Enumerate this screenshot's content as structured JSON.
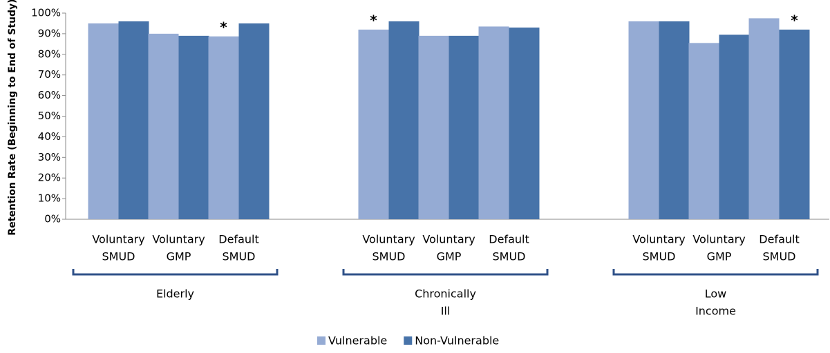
{
  "chart_data": {
    "type": "bar",
    "y_label": "Retention Rate (Beginning to End of Study)",
    "categories": [
      [
        "Voluntary",
        "SMUD"
      ],
      [
        "Voluntary",
        "GMP"
      ],
      [
        "Default",
        "SMUD"
      ],
      null,
      [
        "Voluntary",
        "SMUD"
      ],
      [
        "Voluntary",
        "GMP"
      ],
      [
        "Default",
        "SMUD"
      ],
      null,
      [
        "Voluntary",
        "SMUD"
      ],
      [
        "Voluntary",
        "GMP"
      ],
      [
        "Default",
        "SMUD"
      ]
    ],
    "groups": [
      [
        "Elderly"
      ],
      [
        "Chronically",
        "Ill"
      ],
      [
        "Low",
        "Income"
      ]
    ],
    "series": [
      {
        "name": "Vulnerable",
        "color": "#95abd4",
        "values": [
          95,
          90,
          88.7,
          null,
          92,
          89,
          93.5,
          null,
          96,
          85.5,
          97.5
        ]
      },
      {
        "name": "Non-Vulnerable",
        "color": "#4773a9",
        "values": [
          96,
          89,
          95,
          null,
          96,
          89,
          93,
          null,
          96,
          89.5,
          92
        ]
      }
    ],
    "annotations": [
      {
        "text": "*",
        "series": 0,
        "category": 2
      },
      {
        "text": "*",
        "series": 0,
        "category": 4
      },
      {
        "text": "*",
        "series": 1,
        "category": 10
      }
    ],
    "ylim": [
      0,
      100
    ],
    "yticks": [
      {
        "value": 0,
        "label": "0%"
      },
      {
        "value": 10,
        "label": "10%"
      },
      {
        "value": 20,
        "label": "20%"
      },
      {
        "value": 30,
        "label": "30%"
      },
      {
        "value": 40,
        "label": "40%"
      },
      {
        "value": 50,
        "label": "50%"
      },
      {
        "value": 60,
        "label": "60%"
      },
      {
        "value": 70,
        "label": "70%"
      },
      {
        "value": 80,
        "label": "80%"
      },
      {
        "value": 90,
        "label": "90%"
      },
      {
        "value": 100,
        "label": "100%"
      }
    ],
    "legend": "bottom"
  }
}
